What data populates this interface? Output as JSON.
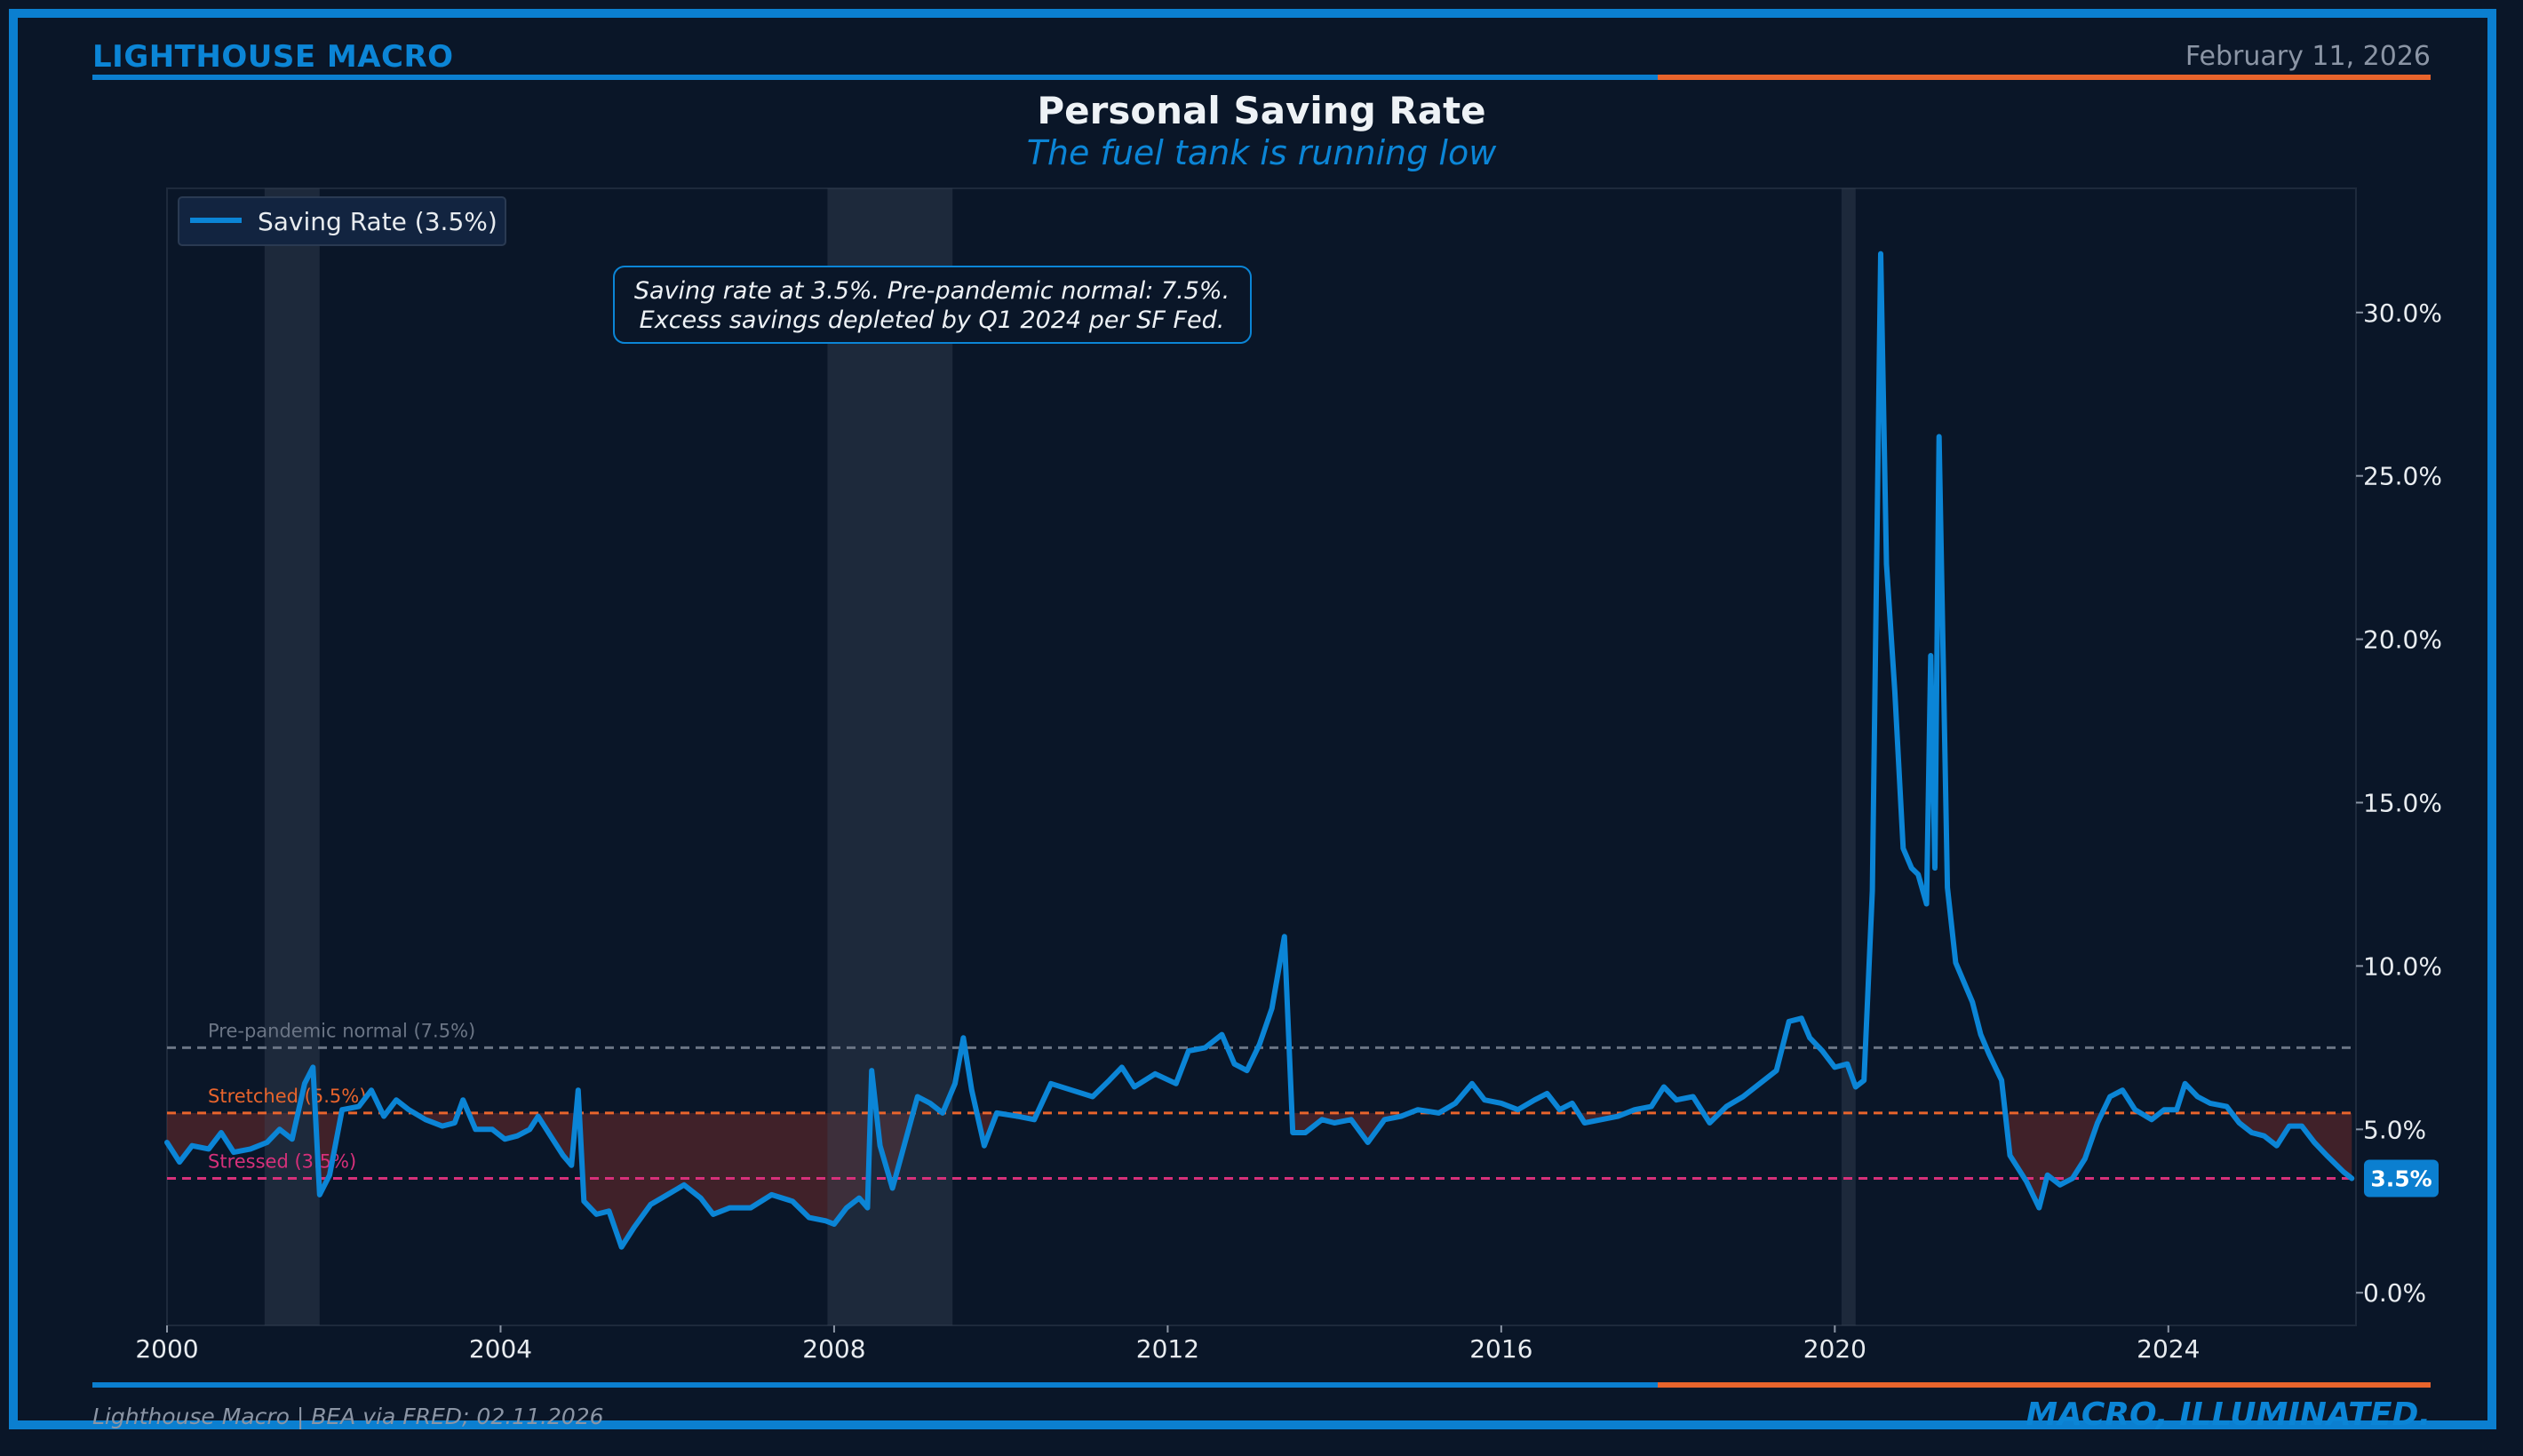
{
  "header": {
    "brand": "LIGHTHOUSE MACRO",
    "date": "February 11, 2026"
  },
  "title": "Personal Saving Rate",
  "subtitle": "The fuel tank is running low",
  "footer": {
    "source": "Lighthouse Macro | BEA via FRED; 02.11.2026",
    "tagline": "MACRO, ILLUMINATED."
  },
  "colors": {
    "background": "#0a1628",
    "accent_blue": "#0b85d6",
    "accent_orange": "#e8642c",
    "stress_pink": "#d6307a",
    "grey": "#6b7585"
  },
  "chart_data": {
    "type": "line",
    "title": "Personal Saving Rate",
    "subtitle": "The fuel tank is running low",
    "xlabel": "",
    "ylabel": "",
    "xlim": [
      2000,
      2026.25
    ],
    "ylim": [
      -1,
      33.8
    ],
    "x_ticks": [
      {
        "value": 2000,
        "label": "2000"
      },
      {
        "value": 2004,
        "label": "2004"
      },
      {
        "value": 2008,
        "label": "2008"
      },
      {
        "value": 2012,
        "label": "2012"
      },
      {
        "value": 2016,
        "label": "2016"
      },
      {
        "value": 2020,
        "label": "2020"
      },
      {
        "value": 2024,
        "label": "2024"
      }
    ],
    "y_ticks": [
      {
        "value": 0,
        "label": "0.0%"
      },
      {
        "value": 5,
        "label": "5.0%"
      },
      {
        "value": 10,
        "label": "10.0%"
      },
      {
        "value": 15,
        "label": "15.0%"
      },
      {
        "value": 20,
        "label": "20.0%"
      },
      {
        "value": 25,
        "label": "25.0%"
      },
      {
        "value": 30,
        "label": "30.0%"
      }
    ],
    "y_axis_side": "right",
    "grid": false,
    "legend": {
      "position": "top-left",
      "entries": [
        "Saving Rate (3.5%)"
      ]
    },
    "series": [
      {
        "name": "Saving Rate (3.5%)",
        "color": "#0b85d6",
        "points": [
          [
            2000.0,
            4.6
          ],
          [
            2000.15,
            4.0
          ],
          [
            2000.3,
            4.5
          ],
          [
            2000.5,
            4.4
          ],
          [
            2000.65,
            4.9
          ],
          [
            2000.8,
            4.3
          ],
          [
            2001.0,
            4.4
          ],
          [
            2001.2,
            4.6
          ],
          [
            2001.35,
            5.0
          ],
          [
            2001.5,
            4.7
          ],
          [
            2001.65,
            6.4
          ],
          [
            2001.75,
            6.9
          ],
          [
            2001.83,
            3.0
          ],
          [
            2001.95,
            3.6
          ],
          [
            2002.1,
            5.6
          ],
          [
            2002.3,
            5.7
          ],
          [
            2002.45,
            6.2
          ],
          [
            2002.6,
            5.4
          ],
          [
            2002.75,
            5.9
          ],
          [
            2002.9,
            5.6
          ],
          [
            2003.1,
            5.3
          ],
          [
            2003.3,
            5.1
          ],
          [
            2003.45,
            5.2
          ],
          [
            2003.55,
            5.9
          ],
          [
            2003.7,
            5.0
          ],
          [
            2003.9,
            5.0
          ],
          [
            2004.05,
            4.7
          ],
          [
            2004.2,
            4.8
          ],
          [
            2004.35,
            5.0
          ],
          [
            2004.45,
            5.4
          ],
          [
            2004.6,
            4.8
          ],
          [
            2004.75,
            4.2
          ],
          [
            2004.85,
            3.9
          ],
          [
            2004.93,
            6.2
          ],
          [
            2005.0,
            2.8
          ],
          [
            2005.15,
            2.4
          ],
          [
            2005.3,
            2.5
          ],
          [
            2005.45,
            1.4
          ],
          [
            2005.6,
            2.0
          ],
          [
            2005.8,
            2.7
          ],
          [
            2006.0,
            3.0
          ],
          [
            2006.2,
            3.3
          ],
          [
            2006.4,
            2.9
          ],
          [
            2006.55,
            2.4
          ],
          [
            2006.75,
            2.6
          ],
          [
            2007.0,
            2.6
          ],
          [
            2007.25,
            3.0
          ],
          [
            2007.5,
            2.8
          ],
          [
            2007.7,
            2.3
          ],
          [
            2007.9,
            2.2
          ],
          [
            2008.0,
            2.1
          ],
          [
            2008.15,
            2.6
          ],
          [
            2008.3,
            2.9
          ],
          [
            2008.4,
            2.6
          ],
          [
            2008.45,
            6.8
          ],
          [
            2008.55,
            4.5
          ],
          [
            2008.7,
            3.2
          ],
          [
            2008.85,
            4.6
          ],
          [
            2009.0,
            6.0
          ],
          [
            2009.15,
            5.8
          ],
          [
            2009.3,
            5.5
          ],
          [
            2009.45,
            6.4
          ],
          [
            2009.55,
            7.8
          ],
          [
            2009.65,
            6.2
          ],
          [
            2009.8,
            4.5
          ],
          [
            2009.95,
            5.5
          ],
          [
            2010.2,
            5.4
          ],
          [
            2010.4,
            5.3
          ],
          [
            2010.6,
            6.4
          ],
          [
            2010.85,
            6.2
          ],
          [
            2011.1,
            6.0
          ],
          [
            2011.3,
            6.5
          ],
          [
            2011.45,
            6.9
          ],
          [
            2011.6,
            6.3
          ],
          [
            2011.85,
            6.7
          ],
          [
            2012.1,
            6.4
          ],
          [
            2012.25,
            7.4
          ],
          [
            2012.45,
            7.5
          ],
          [
            2012.65,
            7.9
          ],
          [
            2012.8,
            7.0
          ],
          [
            2012.95,
            6.8
          ],
          [
            2013.1,
            7.6
          ],
          [
            2013.25,
            8.7
          ],
          [
            2013.4,
            10.9
          ],
          [
            2013.5,
            4.9
          ],
          [
            2013.65,
            4.9
          ],
          [
            2013.85,
            5.3
          ],
          [
            2014.0,
            5.2
          ],
          [
            2014.2,
            5.3
          ],
          [
            2014.4,
            4.6
          ],
          [
            2014.6,
            5.3
          ],
          [
            2014.8,
            5.4
          ],
          [
            2015.0,
            5.6
          ],
          [
            2015.25,
            5.5
          ],
          [
            2015.45,
            5.8
          ],
          [
            2015.65,
            6.4
          ],
          [
            2015.8,
            5.9
          ],
          [
            2016.0,
            5.8
          ],
          [
            2016.2,
            5.6
          ],
          [
            2016.4,
            5.9
          ],
          [
            2016.55,
            6.1
          ],
          [
            2016.7,
            5.6
          ],
          [
            2016.85,
            5.8
          ],
          [
            2017.0,
            5.2
          ],
          [
            2017.2,
            5.3
          ],
          [
            2017.4,
            5.4
          ],
          [
            2017.6,
            5.6
          ],
          [
            2017.8,
            5.7
          ],
          [
            2017.95,
            6.3
          ],
          [
            2018.1,
            5.9
          ],
          [
            2018.3,
            6.0
          ],
          [
            2018.5,
            5.2
          ],
          [
            2018.7,
            5.7
          ],
          [
            2018.9,
            6.0
          ],
          [
            2019.1,
            6.4
          ],
          [
            2019.3,
            6.8
          ],
          [
            2019.45,
            8.3
          ],
          [
            2019.6,
            8.4
          ],
          [
            2019.7,
            7.8
          ],
          [
            2019.85,
            7.4
          ],
          [
            2020.0,
            6.9
          ],
          [
            2020.15,
            7.0
          ],
          [
            2020.25,
            6.3
          ],
          [
            2020.35,
            6.5
          ],
          [
            2020.45,
            12.3
          ],
          [
            2020.55,
            31.8
          ],
          [
            2020.62,
            22.3
          ],
          [
            2020.72,
            18.4
          ],
          [
            2020.82,
            13.6
          ],
          [
            2020.92,
            13.0
          ],
          [
            2021.0,
            12.8
          ],
          [
            2021.1,
            11.9
          ],
          [
            2021.15,
            19.5
          ],
          [
            2021.2,
            13.0
          ],
          [
            2021.25,
            26.2
          ],
          [
            2021.35,
            12.4
          ],
          [
            2021.45,
            10.1
          ],
          [
            2021.55,
            9.5
          ],
          [
            2021.65,
            8.9
          ],
          [
            2021.75,
            7.9
          ],
          [
            2021.85,
            7.3
          ],
          [
            2022.0,
            6.5
          ],
          [
            2022.1,
            4.2
          ],
          [
            2022.3,
            3.4
          ],
          [
            2022.45,
            2.6
          ],
          [
            2022.55,
            3.6
          ],
          [
            2022.7,
            3.3
          ],
          [
            2022.85,
            3.5
          ],
          [
            2023.0,
            4.1
          ],
          [
            2023.15,
            5.2
          ],
          [
            2023.3,
            6.0
          ],
          [
            2023.45,
            6.2
          ],
          [
            2023.6,
            5.6
          ],
          [
            2023.8,
            5.3
          ],
          [
            2023.95,
            5.6
          ],
          [
            2024.1,
            5.6
          ],
          [
            2024.2,
            6.4
          ],
          [
            2024.35,
            6.0
          ],
          [
            2024.5,
            5.8
          ],
          [
            2024.7,
            5.7
          ],
          [
            2024.85,
            5.2
          ],
          [
            2025.0,
            4.9
          ],
          [
            2025.15,
            4.8
          ],
          [
            2025.3,
            4.5
          ],
          [
            2025.45,
            5.1
          ],
          [
            2025.6,
            5.1
          ],
          [
            2025.75,
            4.6
          ],
          [
            2025.9,
            4.2
          ],
          [
            2026.1,
            3.7
          ],
          [
            2026.2,
            3.5
          ]
        ]
      }
    ],
    "recessions": [
      [
        2001.17,
        2001.83
      ],
      [
        2007.92,
        2009.42
      ],
      [
        2020.08,
        2020.25
      ]
    ],
    "reference_lines": [
      {
        "label": "Pre-pandemic normal (7.5%)",
        "value": 7.5,
        "color": "#6b7585"
      },
      {
        "label": "Stretched (5.5%)",
        "value": 5.5,
        "color": "#e8642c"
      },
      {
        "label": "Stressed (3.5%)",
        "value": 3.5,
        "color": "#d6307a"
      }
    ],
    "shading": {
      "threshold": 5.5,
      "color": "#6e2c2a",
      "description": "below Stretched"
    },
    "annotation": "Saving rate at 3.5%. Pre-pandemic normal: 7.5%.\nExcess savings depleted by Q1 2024 per SF Fed.",
    "annotation_lines": [
      "Saving rate at 3.5%. Pre-pandemic normal: 7.5%.",
      "Excess savings depleted by Q1 2024 per SF Fed."
    ],
    "current_value": {
      "value": 3.5,
      "label": "3.5%"
    }
  }
}
